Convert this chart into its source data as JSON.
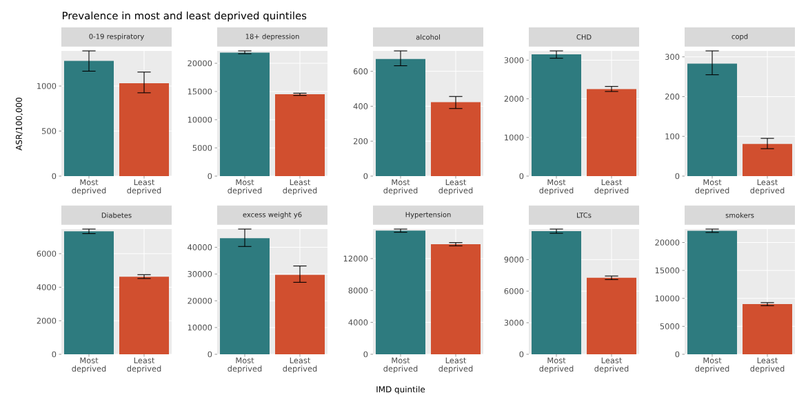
{
  "chart_data": [
    {
      "type": "bar",
      "title": "0-19 respiratory",
      "annotations": [
        "Prevalence in most and least deprived quintiles"
      ],
      "ylabel": "ASR/100,000",
      "categories": [
        "Most deprived",
        "Least deprived"
      ],
      "values": [
        1280,
        1030
      ],
      "colors": [
        "#2e7b7f",
        "#d14f2f"
      ],
      "errors": [
        [
          1165,
          1390
        ],
        [
          925,
          1155
        ]
      ],
      "ylim": [
        0,
        1390
      ],
      "yticks": [
        0,
        500,
        1000
      ],
      "grid": true
    },
    {
      "type": "bar",
      "title": "18+ depression",
      "categories": [
        "Most deprived",
        "Least deprived"
      ],
      "values": [
        21900,
        14500
      ],
      "colors": [
        "#2e7b7f",
        "#d14f2f"
      ],
      "errors": [
        [
          21700,
          22200
        ],
        [
          14300,
          14700
        ]
      ],
      "ylim": [
        0,
        22200
      ],
      "yticks": [
        0,
        5000,
        10000,
        15000,
        20000
      ],
      "grid": true
    },
    {
      "type": "bar",
      "title": "alcohol",
      "categories": [
        "Most deprived",
        "Least deprived"
      ],
      "values": [
        671,
        423
      ],
      "colors": [
        "#2e7b7f",
        "#d14f2f"
      ],
      "errors": [
        [
          632,
          717
        ],
        [
          387,
          456
        ]
      ],
      "ylim": [
        0,
        717
      ],
      "yticks": [
        0,
        200,
        400,
        600
      ],
      "grid": true
    },
    {
      "type": "bar",
      "title": "CHD",
      "categories": [
        "Most deprived",
        "Least deprived"
      ],
      "values": [
        3150,
        2250
      ],
      "colors": [
        "#2e7b7f",
        "#d14f2f"
      ],
      "errors": [
        [
          3050,
          3240
        ],
        [
          2190,
          2320
        ]
      ],
      "ylim": [
        0,
        3240
      ],
      "yticks": [
        0,
        1000,
        2000,
        3000
      ],
      "grid": true
    },
    {
      "type": "bar",
      "title": "copd",
      "categories": [
        "Most deprived",
        "Least deprived"
      ],
      "values": [
        283,
        81
      ],
      "colors": [
        "#2e7b7f",
        "#d14f2f"
      ],
      "errors": [
        [
          255,
          315
        ],
        [
          69,
          95
        ]
      ],
      "ylim": [
        0,
        315
      ],
      "yticks": [
        0,
        100,
        200,
        300
      ],
      "grid": true
    },
    {
      "type": "bar",
      "title": "Diabetes",
      "categories": [
        "Most deprived",
        "Least deprived"
      ],
      "values": [
        7340,
        4630
      ],
      "colors": [
        "#2e7b7f",
        "#d14f2f"
      ],
      "errors": [
        [
          7200,
          7470
        ],
        [
          4520,
          4750
        ]
      ],
      "ylim": [
        0,
        7470
      ],
      "yticks": [
        0,
        2000,
        4000,
        6000
      ],
      "grid": true
    },
    {
      "type": "bar",
      "title": "excess weight y6",
      "categories": [
        "Most deprived",
        "Least deprived"
      ],
      "values": [
        43400,
        29700
      ],
      "colors": [
        "#2e7b7f",
        "#d14f2f"
      ],
      "errors": [
        [
          40300,
          46800
        ],
        [
          26900,
          33000
        ]
      ],
      "ylim": [
        0,
        46800
      ],
      "yticks": [
        0,
        10000,
        20000,
        30000,
        40000
      ],
      "grid": true
    },
    {
      "type": "bar",
      "title": "Hypertension",
      "xlabel": "IMD quintile",
      "categories": [
        "Most deprived",
        "Least deprived"
      ],
      "values": [
        15500,
        13800
      ],
      "colors": [
        "#2e7b7f",
        "#d14f2f"
      ],
      "errors": [
        [
          15300,
          15700
        ],
        [
          13600,
          14000
        ]
      ],
      "ylim": [
        0,
        15700
      ],
      "yticks": [
        0,
        4000,
        8000,
        12000
      ],
      "grid": true
    },
    {
      "type": "bar",
      "title": "LTCs",
      "categories": [
        "Most deprived",
        "Least deprived"
      ],
      "values": [
        11700,
        7270
      ],
      "colors": [
        "#2e7b7f",
        "#d14f2f"
      ],
      "errors": [
        [
          11500,
          11900
        ],
        [
          7100,
          7440
        ]
      ],
      "ylim": [
        0,
        11900
      ],
      "yticks": [
        0,
        3000,
        6000,
        9000
      ],
      "grid": true
    },
    {
      "type": "bar",
      "title": "smokers",
      "categories": [
        "Most deprived",
        "Least deprived"
      ],
      "values": [
        22100,
        8970
      ],
      "colors": [
        "#2e7b7f",
        "#d14f2f"
      ],
      "errors": [
        [
          21800,
          22400
        ],
        [
          8700,
          9240
        ]
      ],
      "ylim": [
        0,
        22400
      ],
      "yticks": [
        0,
        5000,
        10000,
        15000,
        20000
      ],
      "grid": true
    }
  ]
}
